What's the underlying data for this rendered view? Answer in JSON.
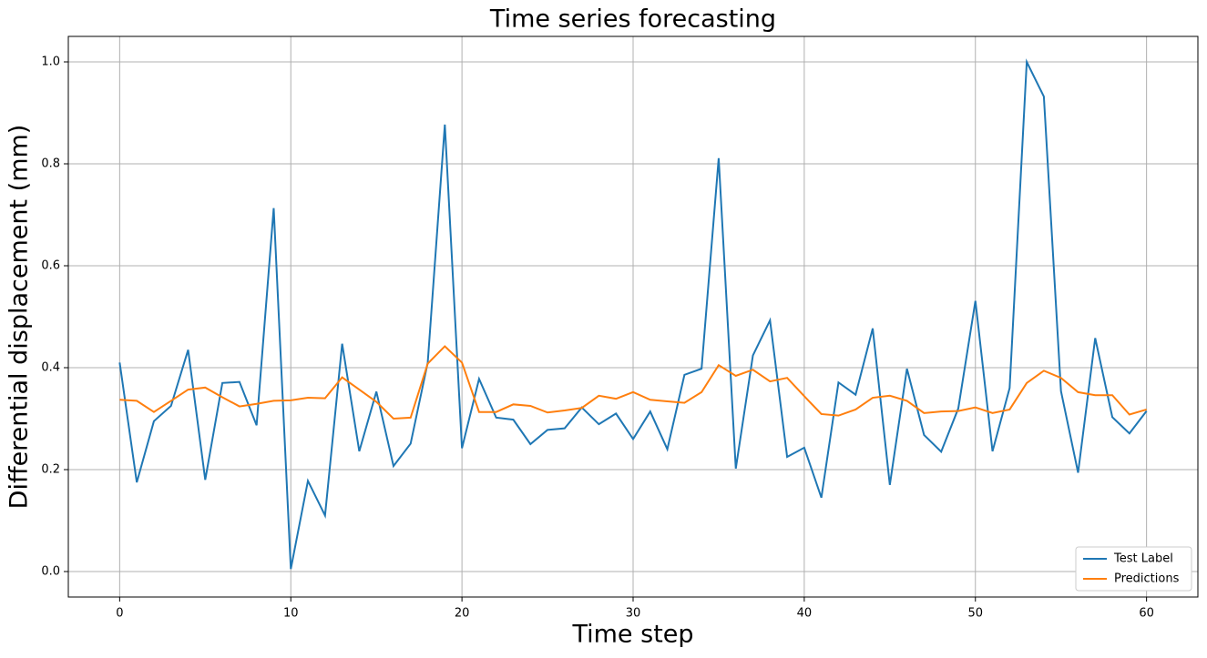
{
  "chart_data": {
    "type": "line",
    "title": "Time series forecasting",
    "xlabel": "Time step",
    "ylabel": "Differential displacement (mm)",
    "x": [
      0,
      1,
      2,
      3,
      4,
      5,
      6,
      7,
      8,
      9,
      10,
      11,
      12,
      13,
      14,
      15,
      16,
      17,
      18,
      19,
      20,
      21,
      22,
      23,
      24,
      25,
      26,
      27,
      28,
      29,
      30,
      31,
      32,
      33,
      34,
      35,
      36,
      37,
      38,
      39,
      40,
      41,
      42,
      43,
      44,
      45,
      46,
      47,
      48,
      49,
      50,
      51,
      52,
      53,
      54,
      55,
      56,
      57,
      58,
      59,
      60
    ],
    "series": [
      {
        "name": "Test Label",
        "color": "#1f77b4",
        "values": [
          0.41,
          0.175,
          0.295,
          0.325,
          0.435,
          0.18,
          0.37,
          0.372,
          0.287,
          0.713,
          0.005,
          0.178,
          0.11,
          0.447,
          0.236,
          0.353,
          0.207,
          0.251,
          0.41,
          0.877,
          0.242,
          0.378,
          0.302,
          0.298,
          0.25,
          0.278,
          0.281,
          0.322,
          0.289,
          0.31,
          0.26,
          0.314,
          0.24,
          0.386,
          0.398,
          0.811,
          0.202,
          0.424,
          0.493,
          0.225,
          0.243,
          0.145,
          0.371,
          0.347,
          0.477,
          0.17,
          0.398,
          0.268,
          0.235,
          0.32,
          0.531,
          0.236,
          0.36,
          1.0,
          0.932,
          0.354,
          0.194,
          0.458,
          0.303,
          0.271,
          0.315
        ]
      },
      {
        "name": "Predictions",
        "color": "#ff7f0e",
        "values": [
          0.337,
          0.335,
          0.313,
          0.335,
          0.357,
          0.361,
          0.342,
          0.324,
          0.329,
          0.335,
          0.336,
          0.341,
          0.34,
          0.381,
          0.357,
          0.333,
          0.3,
          0.302,
          0.408,
          0.442,
          0.41,
          0.313,
          0.313,
          0.328,
          0.325,
          0.312,
          0.316,
          0.321,
          0.345,
          0.339,
          0.352,
          0.337,
          0.334,
          0.331,
          0.352,
          0.405,
          0.384,
          0.396,
          0.373,
          0.38,
          0.344,
          0.309,
          0.306,
          0.318,
          0.341,
          0.345,
          0.335,
          0.311,
          0.314,
          0.315,
          0.322,
          0.311,
          0.318,
          0.37,
          0.394,
          0.38,
          0.352,
          0.346,
          0.346,
          0.308,
          0.318
        ]
      }
    ],
    "xlim": [
      -3,
      63
    ],
    "xticks": [
      0,
      10,
      20,
      30,
      40,
      50,
      60
    ],
    "ylim": [
      -0.05,
      1.05
    ],
    "yticks": [
      {
        "value": 0,
        "label": "0.0"
      },
      0.2,
      0.4,
      0.6,
      0.8,
      {
        "value": 1,
        "label": "1.0"
      }
    ],
    "grid": true,
    "legend": "lower right"
  }
}
